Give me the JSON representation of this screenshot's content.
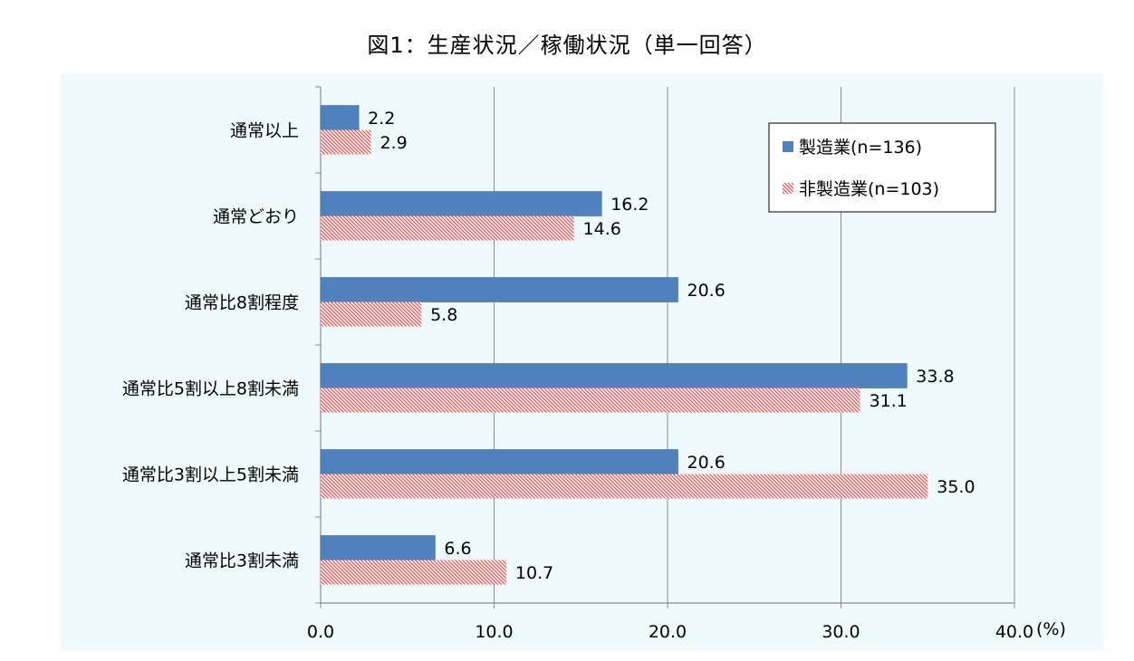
{
  "chart_data": {
    "type": "bar",
    "orientation": "horizontal",
    "title": "図1：生産状況／稼働状況（単一回答）",
    "unit_label": "(%)",
    "categories": [
      "通常以上",
      "通常どおり",
      "通常比8割程度",
      "通常比5割以上8割未満",
      "通常比3割以上5割未満",
      "通常比3割未満"
    ],
    "series": [
      {
        "name": "製造業(n=136)",
        "values": [
          2.2,
          16.2,
          20.6,
          33.8,
          20.6,
          6.6
        ],
        "labels": [
          "2.2",
          "16.2",
          "20.6",
          "33.8",
          "20.6",
          "6.6"
        ],
        "color": "#4F81BD",
        "pattern": "solid"
      },
      {
        "name": "非製造業(n=103)",
        "values": [
          2.9,
          14.6,
          5.8,
          31.1,
          35.0,
          10.7
        ],
        "labels": [
          "2.9",
          "14.6",
          "5.8",
          "31.1",
          "35.0",
          "10.7"
        ],
        "color": "#E0403F",
        "pattern": "hatched"
      }
    ],
    "x_ticks": [
      "0.0",
      "10.0",
      "20.0",
      "30.0",
      "40.0"
    ],
    "xlim": [
      0,
      40
    ],
    "grid": true,
    "legend_position": "top-right",
    "background": "#EEFAFD"
  }
}
